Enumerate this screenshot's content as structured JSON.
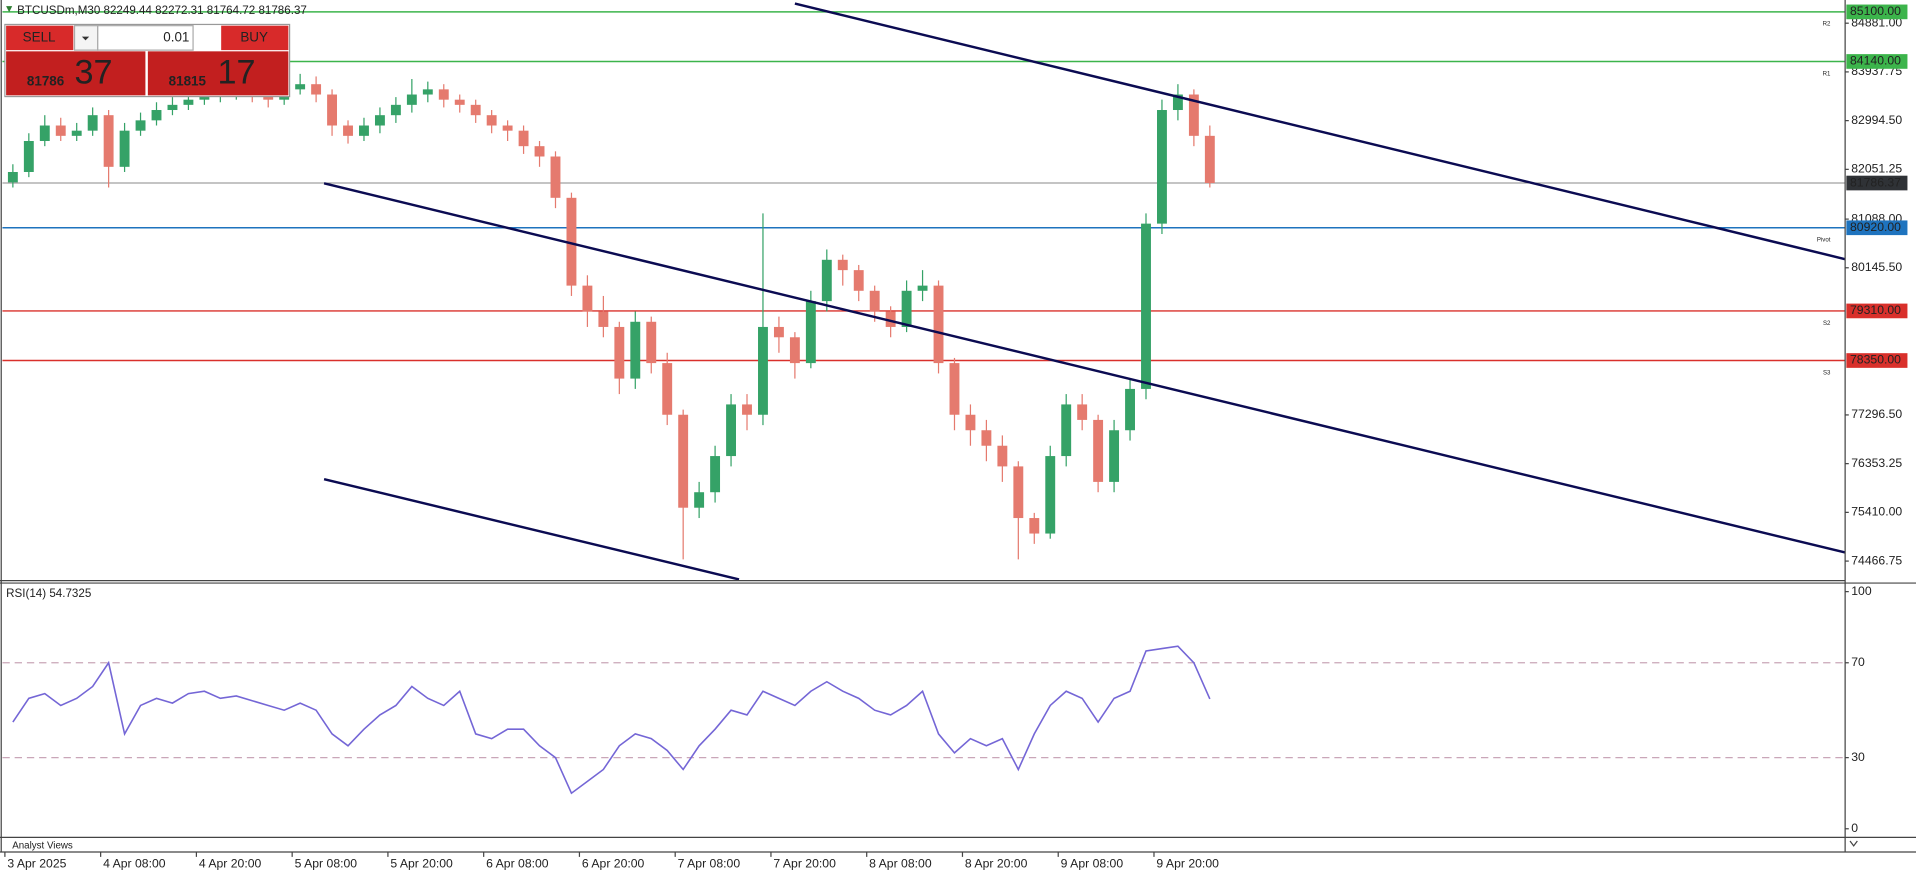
{
  "header": {
    "symbol_info": "BTCUSDm,M30  82249.44 82272.31 81764.72 81786.37"
  },
  "trade_panel": {
    "sell": "SELL",
    "buy": "BUY",
    "volume": "0.01",
    "bid_main": "81786",
    "bid_big": "37",
    "ask_main": "81815",
    "ask_big": "17"
  },
  "footer": {
    "label": "Analyst Views"
  },
  "chart_data": [
    {
      "type": "candlestick",
      "up_color": "#35a267",
      "down_color": "#e57a6e",
      "xlim": [
        0,
        115
      ],
      "ylim": [
        74112,
        85330
      ],
      "xticks": [
        {
          "value": 0,
          "label": "3 Apr 2025"
        },
        {
          "value": 6,
          "label": "4 Apr 08:00"
        },
        {
          "value": 12,
          "label": "4 Apr 20:00"
        },
        {
          "value": 18,
          "label": "5 Apr 08:00"
        },
        {
          "value": 24,
          "label": "5 Apr 20:00"
        },
        {
          "value": 30,
          "label": "6 Apr 08:00"
        },
        {
          "value": 36,
          "label": "6 Apr 20:00"
        },
        {
          "value": 42,
          "label": "7 Apr 08:00"
        },
        {
          "value": 48,
          "label": "7 Apr 20:00"
        },
        {
          "value": 54,
          "label": "8 Apr 08:00"
        },
        {
          "value": 60,
          "label": "8 Apr 20:00"
        },
        {
          "value": 66,
          "label": "9 Apr 08:00"
        },
        {
          "value": 72,
          "label": "9 Apr 20:00"
        }
      ],
      "yticks": [
        {
          "value": 84881,
          "label": "84881.00"
        },
        {
          "value": 83937.75,
          "label": "83937.75"
        },
        {
          "value": 82994.5,
          "label": "82994.50"
        },
        {
          "value": 82051.25,
          "label": "82051.25"
        },
        {
          "value": 81088,
          "label": "81088.00"
        },
        {
          "value": 80145.5,
          "label": "80145.50"
        },
        {
          "value": 77296.5,
          "label": "77296.50"
        },
        {
          "value": 76353.25,
          "label": "76353.25"
        },
        {
          "value": 75410,
          "label": "75410.00"
        },
        {
          "value": 74466.75,
          "label": "74466.75"
        }
      ],
      "open": [
        81800,
        82000,
        82600,
        82900,
        82700,
        82800,
        83100,
        82100,
        82800,
        83000,
        83200,
        83300,
        83400,
        83500,
        83500,
        83600,
        83500,
        83400,
        83600,
        83700,
        83500,
        82900,
        82700,
        82900,
        83100,
        83300,
        83500,
        83600,
        83400,
        83300,
        83100,
        82900,
        82800,
        82500,
        82300,
        81500,
        79800,
        79300,
        79000,
        78000,
        79100,
        78300,
        77300,
        75500,
        75800,
        76500,
        77500,
        77300,
        79000,
        78800,
        78300,
        79500,
        80300,
        80100,
        79700,
        79300,
        79000,
        79700,
        79800,
        78300,
        77300,
        77000,
        76700,
        76300,
        75300,
        75000,
        76500,
        77500,
        77200,
        76000,
        77000,
        77800,
        81000,
        83200,
        83500,
        82700
      ],
      "high": [
        82150,
        82750,
        83100,
        83050,
        82950,
        83250,
        83200,
        82950,
        83150,
        83350,
        83450,
        83550,
        83650,
        83650,
        83750,
        83700,
        83600,
        83750,
        83900,
        83850,
        83600,
        83000,
        83050,
        83250,
        83450,
        83800,
        83750,
        83700,
        83500,
        83400,
        83200,
        83000,
        82900,
        82600,
        82400,
        81600,
        80000,
        79600,
        79100,
        79300,
        79200,
        78500,
        77400,
        76000,
        76700,
        77700,
        77700,
        81200,
        79200,
        78900,
        79700,
        80500,
        80400,
        80200,
        79800,
        79400,
        79900,
        80100,
        79900,
        78400,
        77500,
        77200,
        76900,
        76400,
        75400,
        76700,
        77700,
        77700,
        77300,
        77200,
        78000,
        81200,
        83400,
        83700,
        83600,
        82900
      ],
      "low": [
        81700,
        81900,
        82500,
        82600,
        82600,
        82700,
        81700,
        82000,
        82700,
        82900,
        83100,
        83200,
        83300,
        83350,
        83400,
        83350,
        83250,
        83300,
        83500,
        83350,
        82700,
        82550,
        82600,
        82750,
        82950,
        83150,
        83350,
        83250,
        83150,
        82950,
        82750,
        82600,
        82350,
        82100,
        81300,
        79600,
        79000,
        78800,
        77700,
        77800,
        78100,
        77100,
        74500,
        75300,
        75600,
        76300,
        77000,
        77100,
        78500,
        78000,
        78200,
        79300,
        79800,
        79500,
        79100,
        78800,
        78900,
        79500,
        78100,
        77000,
        76700,
        76400,
        76000,
        74500,
        74800,
        74900,
        76300,
        77000,
        75800,
        75800,
        76800,
        77600,
        80800,
        83000,
        82500,
        81700
      ],
      "close": [
        82000,
        82600,
        82900,
        82700,
        82800,
        83100,
        82100,
        82800,
        83000,
        83200,
        83300,
        83400,
        83500,
        83500,
        83600,
        83500,
        83400,
        83600,
        83700,
        83500,
        82900,
        82700,
        82900,
        83100,
        83300,
        83500,
        83600,
        83400,
        83300,
        83100,
        82900,
        82800,
        82500,
        82300,
        81500,
        79800,
        79300,
        79000,
        78000,
        79100,
        78300,
        77300,
        75500,
        75800,
        76500,
        77500,
        77300,
        79000,
        78800,
        78300,
        79500,
        80300,
        80100,
        79700,
        79300,
        79000,
        79700,
        79800,
        78300,
        77300,
        77000,
        76700,
        76300,
        75300,
        75000,
        76500,
        77500,
        77200,
        76000,
        77000,
        77800,
        81000,
        83200,
        83500,
        82700,
        81786.37
      ],
      "last_price": 81786.37,
      "levels": [
        {
          "name": "R2",
          "value": 85100,
          "label": "85100.00",
          "color": "#3cb44b"
        },
        {
          "name": "R1",
          "value": 84140,
          "label": "84140.00",
          "color": "#3cb44b"
        },
        {
          "name": "Pivot",
          "value": 80920,
          "label": "80920.00",
          "color": "#1e73be"
        },
        {
          "name": "S2",
          "value": 79310,
          "label": "79310.00",
          "color": "#d9302b"
        },
        {
          "name": "S3",
          "value": 78350,
          "label": "78350.00",
          "color": "#d9302b"
        }
      ],
      "trendline_color": "#0b0b52",
      "trendlines": [
        {
          "x": [
            49.5,
            115.3
          ],
          "y": [
            85260,
            80313
          ]
        },
        {
          "x": [
            20,
            115.3
          ],
          "y": [
            81780,
            74633
          ]
        },
        {
          "x": [
            20,
            46
          ],
          "y": [
            76053,
            74112
          ]
        }
      ]
    },
    {
      "type": "line",
      "title": "RSI(14) 54.7325",
      "color": "#7466d6",
      "xlim": [
        0,
        115
      ],
      "ylim": [
        0,
        100
      ],
      "yticks": [
        0,
        30,
        70,
        100
      ],
      "dashed_levels": [
        30,
        70
      ],
      "values": [
        45,
        55,
        57,
        52,
        55,
        60,
        70,
        40,
        52,
        55,
        53,
        57,
        58,
        55,
        56,
        54,
        52,
        50,
        53,
        50,
        40,
        35,
        42,
        48,
        52,
        60,
        55,
        52,
        58,
        40,
        38,
        42,
        42,
        35,
        30,
        15,
        20,
        25,
        35,
        40,
        38,
        33,
        25,
        35,
        42,
        50,
        48,
        58,
        55,
        52,
        58,
        62,
        58,
        55,
        50,
        48,
        52,
        58,
        40,
        32,
        38,
        35,
        38,
        25,
        40,
        52,
        58,
        55,
        45,
        55,
        58,
        75,
        76,
        77,
        70,
        54.7325
      ]
    }
  ]
}
